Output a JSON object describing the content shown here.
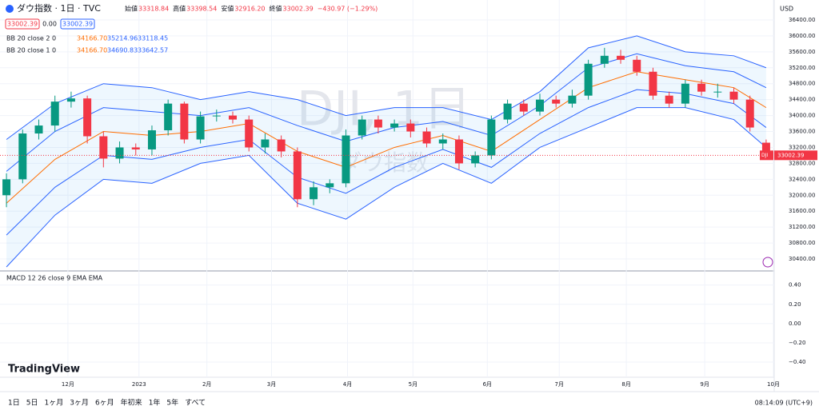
{
  "header": {
    "title": "ダウ指数 · 1日 · TVC",
    "ohlc": [
      "始値",
      "33318.84",
      "高値",
      "33398.54",
      "安値",
      "32916.20",
      "終値",
      "33002.39",
      "−430.97 (−1.29%)"
    ],
    "sell": "33002.39",
    "spread": "0.00",
    "buy": "33002.39",
    "currency": "USD",
    "price_tag_symbol": "DJI",
    "price_tag": "33002.39"
  },
  "indicators": [
    {
      "label": "BB 20 close 2 0",
      "values": [
        "34166.70",
        "35214.96",
        "33118.45"
      ]
    },
    {
      "label": "BB 20 close 1 0",
      "values": [
        "34166.70",
        "34690.83",
        "33642.57"
      ]
    }
  ],
  "watermark": {
    "line1": "DJI, 1日",
    "line2": "ダウ指数"
  },
  "logo": "TradingView",
  "toolbar": {
    "ranges": [
      "1日",
      "5日",
      "1ヶ月",
      "3ヶ月",
      "6ヶ月",
      "年初来",
      "1年",
      "5年",
      "すべて"
    ],
    "clock": "08:14:09 (UTC+9)"
  },
  "chart_data": [
    {
      "type": "candlestick",
      "x": [
        0,
        1,
        2,
        3,
        4,
        5,
        6,
        7,
        8,
        9,
        10,
        11,
        12,
        13,
        14,
        15,
        16,
        17,
        18,
        19,
        20,
        21,
        22,
        23,
        24,
        25,
        26,
        27,
        28,
        29,
        30,
        31,
        32,
        33,
        34,
        35,
        36,
        37,
        38,
        39,
        40,
        41,
        42,
        43,
        44,
        45,
        46,
        47
      ],
      "open": [
        32000,
        32400,
        33550,
        33750,
        34350,
        34430,
        33480,
        32920,
        33200,
        33150,
        33630,
        34300,
        33400,
        33980,
        34000,
        33900,
        33200,
        33400,
        33100,
        31900,
        32200,
        32300,
        33500,
        33900,
        33700,
        33800,
        33600,
        33300,
        33400,
        32800,
        33000,
        33900,
        34300,
        34100,
        34400,
        34300,
        34500,
        35300,
        35500,
        35400,
        35100,
        34500,
        34300,
        34800,
        34600,
        34600,
        34400,
        33318.84
      ],
      "high": [
        32550,
        33650,
        33900,
        34500,
        34600,
        34500,
        33600,
        33350,
        33300,
        33750,
        34400,
        34350,
        34100,
        34150,
        34100,
        34000,
        33550,
        33500,
        33200,
        32350,
        32400,
        33650,
        34000,
        34000,
        33900,
        33900,
        33700,
        33550,
        33500,
        33100,
        34000,
        34400,
        34400,
        34550,
        34500,
        34650,
        35400,
        35700,
        35650,
        35500,
        35200,
        34600,
        34900,
        34900,
        34800,
        34700,
        34500,
        33398.54
      ],
      "low": [
        31700,
        32300,
        33400,
        33600,
        34200,
        33300,
        32700,
        32800,
        33000,
        33000,
        33500,
        33300,
        33300,
        33850,
        33800,
        33100,
        33050,
        32950,
        31700,
        31750,
        32050,
        32200,
        33400,
        33550,
        33600,
        33450,
        33200,
        33150,
        32650,
        32700,
        32900,
        33800,
        34000,
        34000,
        34200,
        34200,
        34400,
        35200,
        35300,
        35000,
        34400,
        34200,
        34200,
        34500,
        34450,
        34300,
        33600,
        32916.2
      ],
      "close": [
        32400,
        33550,
        33750,
        34350,
        34430,
        33480,
        32920,
        33200,
        33150,
        33630,
        34300,
        33400,
        33980,
        34000,
        33900,
        33200,
        33400,
        33100,
        31900,
        32200,
        32300,
        33500,
        33900,
        33700,
        33800,
        33600,
        33300,
        33400,
        32800,
        33000,
        33900,
        34300,
        34100,
        34400,
        34300,
        34500,
        35300,
        35500,
        35400,
        35100,
        34500,
        34300,
        34800,
        34600,
        34600,
        34400,
        33700,
        33002.39
      ],
      "up_color": "#089981",
      "down_color": "#f23645",
      "bands": [
        {
          "color": "#2962ff",
          "x": [
            0,
            3,
            6,
            9,
            12,
            15,
            18,
            21,
            24,
            27,
            30,
            33,
            36,
            39,
            42,
            45,
            47
          ],
          "values": [
            33400,
            34300,
            34800,
            34700,
            34400,
            34600,
            34400,
            34000,
            34200,
            34200,
            33900,
            34600,
            35700,
            36000,
            35600,
            35500,
            35200
          ]
        },
        {
          "color": "#2962ff",
          "x": [
            0,
            3,
            6,
            9,
            12,
            15,
            18,
            21,
            24,
            27,
            30,
            33,
            36,
            39,
            42,
            45,
            47
          ],
          "values": [
            30200,
            31500,
            32400,
            32300,
            32800,
            33000,
            31800,
            31400,
            32200,
            32800,
            32300,
            33200,
            33700,
            34200,
            34200,
            33900,
            33200
          ]
        },
        {
          "color": "#2962ff",
          "x": [
            0,
            3,
            6,
            9,
            12,
            15,
            18,
            21,
            24,
            27,
            30,
            33,
            36,
            39,
            42,
            45,
            47
          ],
          "values": [
            32600,
            33600,
            34200,
            34100,
            34000,
            34200,
            33750,
            33350,
            33700,
            33850,
            33500,
            34250,
            35200,
            35550,
            35250,
            35100,
            34700
          ]
        },
        {
          "color": "#2962ff",
          "x": [
            0,
            3,
            6,
            9,
            12,
            15,
            18,
            21,
            24,
            27,
            30,
            33,
            36,
            39,
            42,
            45,
            47
          ],
          "values": [
            31000,
            32200,
            33000,
            32900,
            33200,
            33400,
            32450,
            32050,
            32700,
            33150,
            32700,
            33550,
            34200,
            34650,
            34550,
            34300,
            33700
          ]
        },
        {
          "color": "#ff6d00",
          "x": [
            0,
            3,
            6,
            9,
            12,
            15,
            18,
            21,
            24,
            27,
            30,
            33,
            36,
            39,
            42,
            45,
            47
          ],
          "values": [
            31800,
            32900,
            33600,
            33500,
            33600,
            33800,
            33100,
            32700,
            33200,
            33500,
            33100,
            33900,
            34700,
            35100,
            34900,
            34700,
            34200
          ]
        }
      ],
      "xlim": [
        -0.4,
        47.4
      ],
      "xticks": [
        {
          "value": 3.8,
          "label": "12月"
        },
        {
          "value": 8.2,
          "label": "2023"
        },
        {
          "value": 12.4,
          "label": "2月"
        },
        {
          "value": 16.4,
          "label": "3月"
        },
        {
          "value": 21.1,
          "label": "4月"
        },
        {
          "value": 25.15,
          "label": "5月"
        },
        {
          "value": 29.75,
          "label": "6月"
        },
        {
          "value": 34.2,
          "label": "7月"
        },
        {
          "value": 38.35,
          "label": "8月"
        },
        {
          "value": 43.2,
          "label": "9月"
        },
        {
          "value": 47.45,
          "label": "10月"
        }
      ],
      "ylim": [
        30120,
        36740
      ],
      "yticks": [
        {
          "value": 30400,
          "label": "30400.00"
        },
        {
          "value": 30800,
          "label": "30800.00"
        },
        {
          "value": 31200,
          "label": "31200.00"
        },
        {
          "value": 31600,
          "label": "31600.00"
        },
        {
          "value": 32000,
          "label": "32000.00"
        },
        {
          "value": 32400,
          "label": "32400.00"
        },
        {
          "value": 32800,
          "label": "32800.00"
        },
        {
          "value": 33200,
          "label": "33200.00"
        },
        {
          "value": 33600,
          "label": "33600.00"
        },
        {
          "value": 34000,
          "label": "34000.00"
        },
        {
          "value": 34400,
          "label": "34400.00"
        },
        {
          "value": 34800,
          "label": "34800.00"
        },
        {
          "value": 35200,
          "label": "35200.00"
        },
        {
          "value": 35600,
          "label": "35600.00"
        },
        {
          "value": 36000,
          "label": "36000.00"
        },
        {
          "value": 36400,
          "label": "36400.00"
        }
      ],
      "grid": true
    },
    {
      "type": "line",
      "title": "MACD 12 26 close 9 EMA EMA",
      "ylim": [
        -0.69,
        0.53
      ],
      "yticks": [
        {
          "value": 0.4,
          "label": "0.40"
        },
        {
          "value": 0.2,
          "label": "0.20"
        },
        {
          "value": 0,
          "label": "0.00"
        },
        {
          "value": -0.2,
          "label": "−0.20"
        },
        {
          "value": -0.4,
          "label": "−0.40"
        }
      ],
      "grid": true
    }
  ]
}
